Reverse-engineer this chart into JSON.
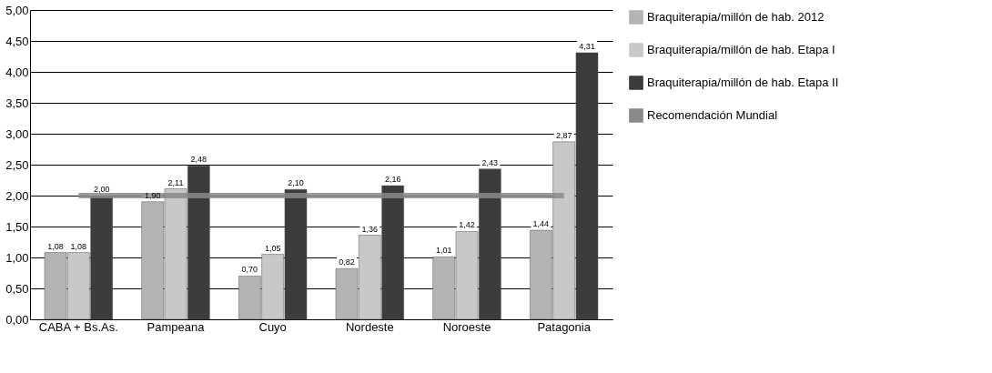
{
  "chart_data": {
    "type": "bar",
    "categories": [
      "CABA + Bs.As.",
      "Pampeana",
      "Cuyo",
      "Nordeste",
      "Noroeste",
      "Patagonia"
    ],
    "series": [
      {
        "name": "Braquiterapia/millón de hab. 2012",
        "color": "#b4b4b4",
        "values": [
          1.08,
          1.9,
          0.7,
          0.82,
          1.01,
          1.44
        ],
        "value_labels": [
          "1,08",
          "1,90",
          "0,70",
          "0,82",
          "1,01",
          "1,44"
        ]
      },
      {
        "name": "Braquiterapia/millón de hab. Etapa I",
        "color": "#c8c8c8",
        "values": [
          1.08,
          2.11,
          1.05,
          1.36,
          1.42,
          2.87
        ],
        "value_labels": [
          "1,08",
          "2,11",
          "1,05",
          "1,36",
          "1,42",
          "2,87"
        ]
      },
      {
        "name": "Braquiterapia/millón de hab. Etapa II",
        "color": "#3c3c3c",
        "values": [
          2.0,
          2.48,
          2.1,
          2.16,
          2.43,
          4.31
        ],
        "value_labels": [
          "2,00",
          "2,48",
          "2,10",
          "2,16",
          "2,43",
          "4,31"
        ]
      },
      {
        "name": "Recomendación Mundial",
        "color": "#8a8a8a",
        "type": "line",
        "values": [
          2.0,
          2.0,
          2.0,
          2.0,
          2.0,
          2.0
        ]
      }
    ],
    "ylim": [
      0,
      5
    ],
    "yticks": [
      {
        "value": 0,
        "label": "0,00"
      },
      {
        "value": 0.5,
        "label": "0,50"
      },
      {
        "value": 1,
        "label": "1,00"
      },
      {
        "value": 1.5,
        "label": "1,50"
      },
      {
        "value": 2,
        "label": "2,00"
      },
      {
        "value": 2.5,
        "label": "2,50"
      },
      {
        "value": 3,
        "label": "3,00"
      },
      {
        "value": 3.5,
        "label": "3,50"
      },
      {
        "value": 4,
        "label": "4,00"
      },
      {
        "value": 4.5,
        "label": "4,50"
      },
      {
        "value": 5,
        "label": "5,00"
      }
    ],
    "grid": "y",
    "legend": "right"
  }
}
